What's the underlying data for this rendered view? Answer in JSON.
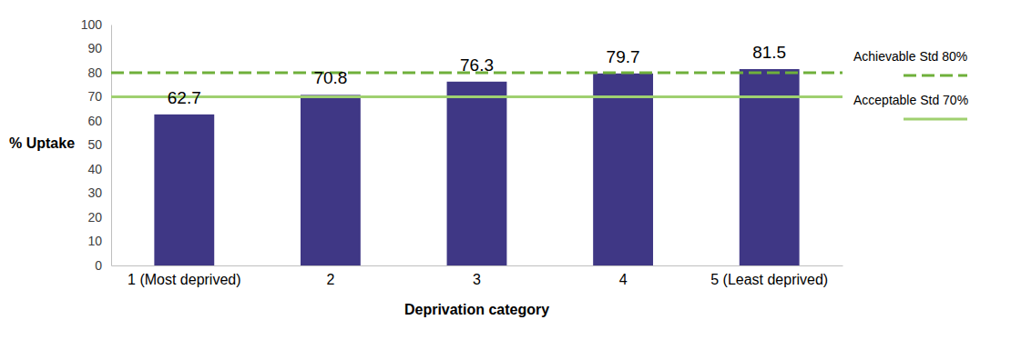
{
  "chart_data": {
    "type": "bar",
    "x_label": "Deprivation category",
    "y_label": "% Uptake",
    "categories": [
      "1 (Most deprived)",
      "2",
      "3",
      "4",
      "5 (Least deprived)"
    ],
    "values": [
      62.7,
      70.8,
      76.3,
      79.7,
      81.5
    ],
    "color": "#3f3785",
    "ylim": [
      0,
      100
    ],
    "yticks": [
      0,
      10,
      20,
      30,
      40,
      50,
      60,
      70,
      80,
      90,
      100
    ],
    "grid": false,
    "data_labels": true,
    "reference_lines": [
      {
        "value": 80,
        "label": "Achievable Std 80%",
        "color": "#6fb03b",
        "line_style": "dashed"
      },
      {
        "value": 70,
        "label": "Acceptable Std 70%",
        "color": "#9fd070",
        "line_style": "solid"
      }
    ]
  }
}
